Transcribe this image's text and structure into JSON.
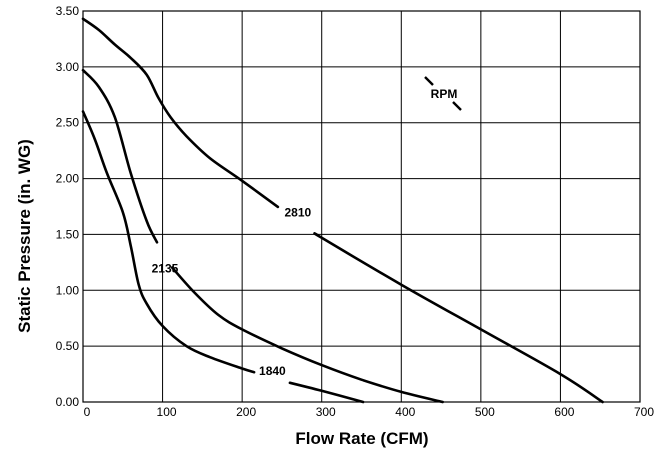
{
  "chart_data": {
    "type": "line",
    "title": "",
    "xlabel": "Flow Rate (CFM)",
    "ylabel": "Static Pressure (in. WG)",
    "xlim": [
      0,
      700
    ],
    "ylim": [
      0,
      3.5
    ],
    "xticks": [
      0,
      100,
      200,
      300,
      400,
      500,
      600,
      700
    ],
    "yticks": [
      "0.00",
      "0.50",
      "1.00",
      "1.50",
      "2.00",
      "2.50",
      "3.00",
      "3.50"
    ],
    "grid": true,
    "annotation": "RPM",
    "series": [
      {
        "name": "2810",
        "x": [
          0,
          20,
          40,
          60,
          80,
          95,
          110,
          130,
          160,
          200,
          250,
          300,
          400,
          500,
          600,
          653
        ],
        "y": [
          3.43,
          3.33,
          3.2,
          3.08,
          2.93,
          2.72,
          2.55,
          2.38,
          2.18,
          1.98,
          1.72,
          1.47,
          1.05,
          0.65,
          0.25,
          0.0
        ]
      },
      {
        "name": "2135",
        "x": [
          0,
          20,
          40,
          60,
          80,
          95,
          110,
          140,
          170,
          200,
          250,
          300,
          350,
          400,
          452
        ],
        "y": [
          2.97,
          2.82,
          2.55,
          2.05,
          1.62,
          1.4,
          1.22,
          0.98,
          0.78,
          0.65,
          0.48,
          0.33,
          0.2,
          0.09,
          0.0
        ]
      },
      {
        "name": "1840",
        "x": [
          0,
          15,
          30,
          50,
          60,
          70,
          80,
          100,
          130,
          160,
          200,
          250,
          300,
          352
        ],
        "y": [
          2.6,
          2.35,
          2.05,
          1.7,
          1.4,
          1.05,
          0.88,
          0.68,
          0.5,
          0.4,
          0.3,
          0.19,
          0.1,
          0.0
        ]
      }
    ]
  }
}
